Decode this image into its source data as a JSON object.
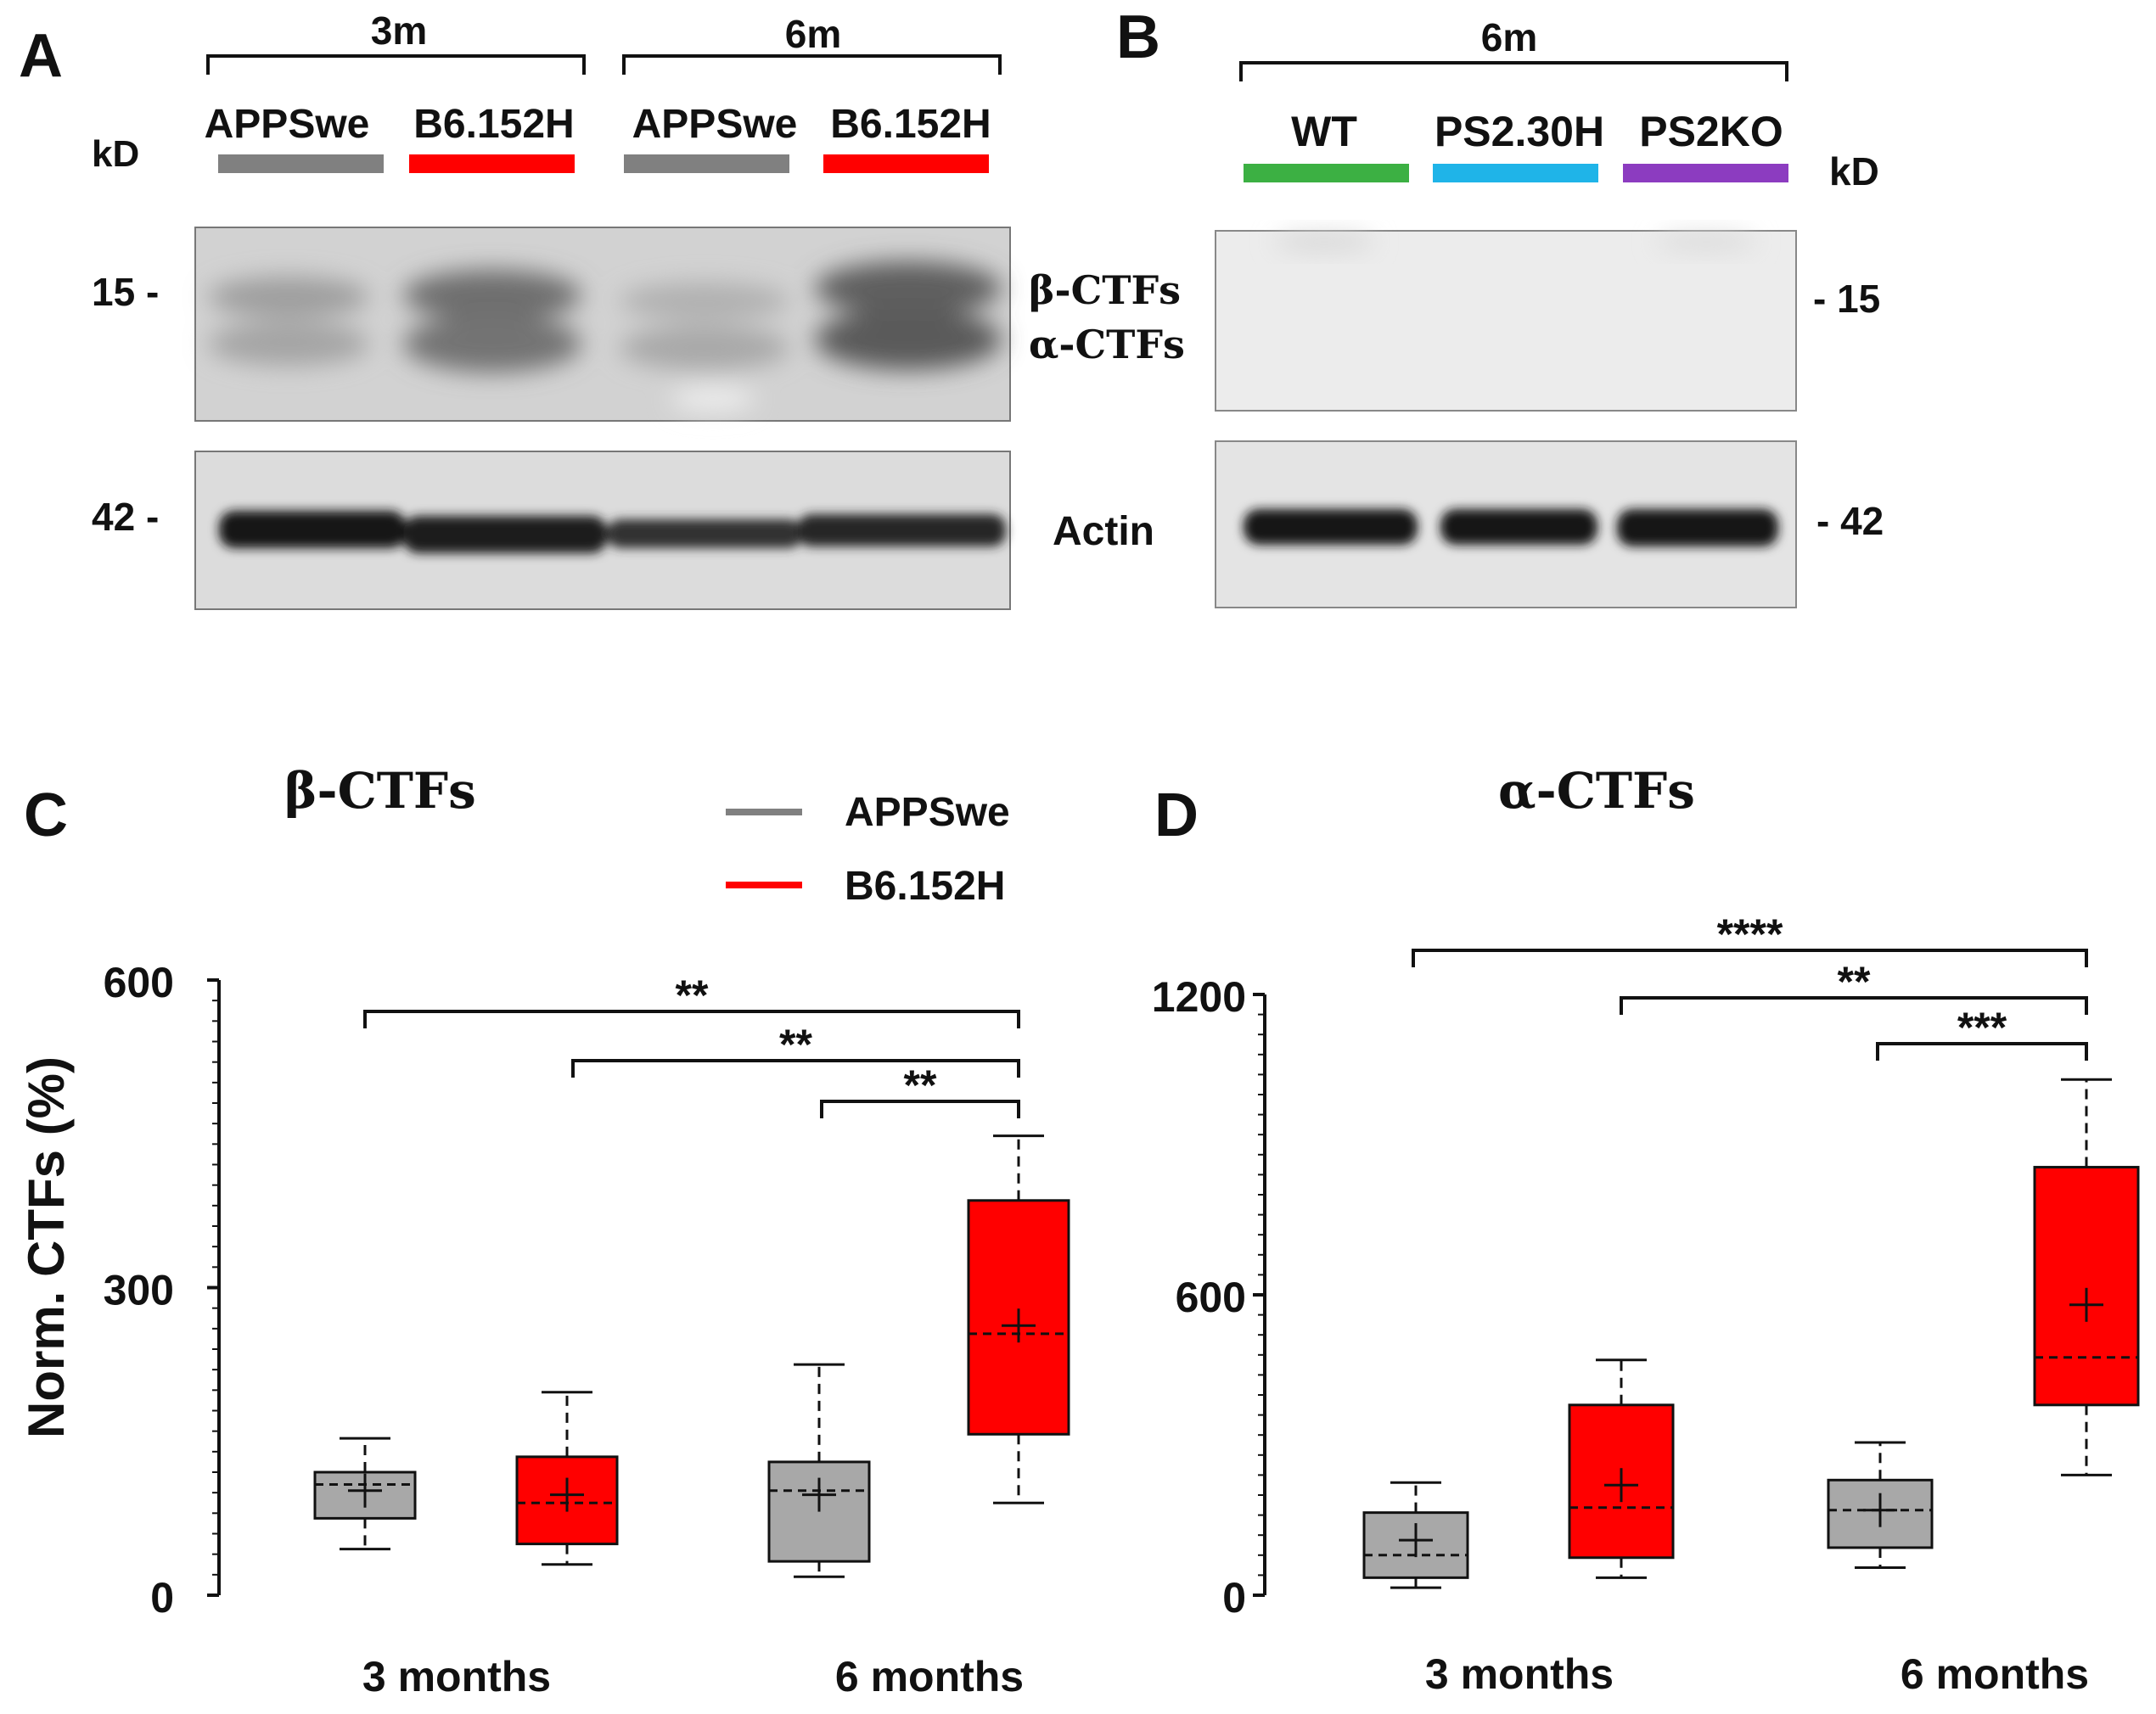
{
  "panel_a": {
    "letter": "A",
    "kd_label": "kD",
    "group_labels": [
      "3m",
      "6m"
    ],
    "lane_labels": [
      "APPSwe",
      "B6.152H",
      "APPSwe",
      "B6.152H"
    ],
    "lane_colors": [
      "#808080",
      "#ff0000",
      "#808080",
      "#ff0000"
    ],
    "marker_15": "15 -",
    "marker_42": "42 -",
    "band_label_beta": "β-CTFs",
    "band_label_alpha": "α-CTFs",
    "band_label_actin": "Actin"
  },
  "panel_b": {
    "letter": "B",
    "kd_label": "kD",
    "group_label": "6m",
    "lane_labels": [
      "WT",
      "PS2.30H",
      "PS2KO"
    ],
    "lane_colors": [
      "#3cb043",
      "#1fb4e8",
      "#8c3cc0"
    ],
    "marker_15": "- 15",
    "marker_42": "- 42"
  },
  "legend": {
    "items": [
      {
        "label": "APPSwe",
        "color": "#808080"
      },
      {
        "label": "B6.152H",
        "color": "#ff0000"
      }
    ]
  },
  "chart_data": [
    {
      "panel": "C",
      "type": "box",
      "title": "β-CTFs",
      "ylabel": "Norm. CTFs (%)",
      "ylim": [
        0,
        600
      ],
      "yticks": [
        0,
        300,
        600
      ],
      "categories": [
        "3 months",
        "6 months"
      ],
      "boxes": [
        {
          "group": "APPSwe",
          "category": "3 months",
          "min": 45,
          "q1": 75,
          "median": 108,
          "mean": 102,
          "q3": 120,
          "max": 153,
          "color": "#a8a8a8"
        },
        {
          "group": "B6.152H",
          "category": "3 months",
          "min": 30,
          "q1": 50,
          "median": 90,
          "mean": 98,
          "q3": 135,
          "max": 198,
          "color": "#ff0000"
        },
        {
          "group": "APPSwe",
          "category": "6 months",
          "min": 18,
          "q1": 33,
          "median": 102,
          "mean": 98,
          "q3": 130,
          "max": 225,
          "color": "#a8a8a8"
        },
        {
          "group": "B6.152H",
          "category": "6 months",
          "min": 90,
          "q1": 157,
          "median": 255,
          "mean": 263,
          "q3": 385,
          "max": 448,
          "color": "#ff0000"
        }
      ],
      "significance": [
        {
          "from": "APPSwe 3 months",
          "to": "B6.152H 6 months",
          "label": "**"
        },
        {
          "from": "B6.152H 3 months",
          "to": "B6.152H 6 months",
          "label": "**"
        },
        {
          "from": "APPSwe 6 months",
          "to": "B6.152H 6 months",
          "label": "**"
        }
      ]
    },
    {
      "panel": "D",
      "type": "box",
      "title": "α-CTFs",
      "ylabel": "",
      "ylim": [
        0,
        1200
      ],
      "yticks": [
        0,
        600,
        1200
      ],
      "categories": [
        "3 months",
        "6 months"
      ],
      "boxes": [
        {
          "group": "APPSwe",
          "category": "3 months",
          "min": 15,
          "q1": 35,
          "median": 80,
          "mean": 110,
          "q3": 165,
          "max": 225,
          "color": "#a8a8a8"
        },
        {
          "group": "B6.152H",
          "category": "3 months",
          "min": 35,
          "q1": 75,
          "median": 175,
          "mean": 220,
          "q3": 380,
          "max": 470,
          "color": "#ff0000"
        },
        {
          "group": "APPSwe",
          "category": "6 months",
          "min": 55,
          "q1": 95,
          "median": 170,
          "mean": 170,
          "q3": 230,
          "max": 305,
          "color": "#a8a8a8"
        },
        {
          "group": "B6.152H",
          "category": "6 months",
          "min": 240,
          "q1": 380,
          "median": 475,
          "mean": 580,
          "q3": 855,
          "max": 1030,
          "color": "#ff0000"
        }
      ],
      "significance": [
        {
          "from": "APPSwe 3 months",
          "to": "B6.152H 6 months",
          "label": "****"
        },
        {
          "from": "B6.152H 3 months",
          "to": "B6.152H 6 months",
          "label": "**"
        },
        {
          "from": "APPSwe 6 months",
          "to": "B6.152H 6 months",
          "label": "***"
        }
      ]
    }
  ]
}
